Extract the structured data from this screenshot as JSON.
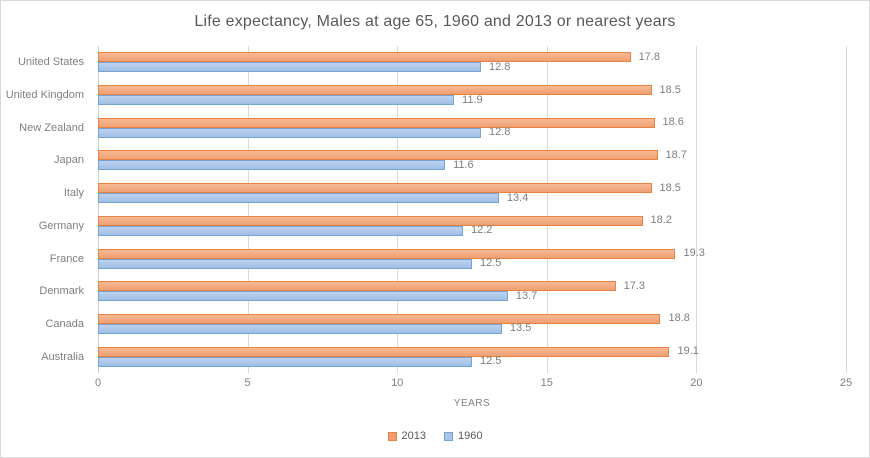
{
  "chart_data": {
    "type": "bar",
    "orientation": "horizontal",
    "title": "Life expectancy, Males at age 65, 1960 and 2013 or nearest years",
    "categories": [
      "United States",
      "United Kingdom",
      "New Zealand",
      "Japan",
      "Italy",
      "Germany",
      "France",
      "Denmark",
      "Canada",
      "Australia"
    ],
    "series": [
      {
        "name": "2013",
        "values": [
          17.8,
          18.5,
          18.6,
          18.7,
          18.5,
          18.2,
          19.3,
          17.3,
          18.8,
          19.1
        ],
        "fill_top": "#F7BB96",
        "fill_bottom": "#EF9E72",
        "border": "#E8833F",
        "legend_fill": "#F09D70"
      },
      {
        "name": "1960",
        "values": [
          12.8,
          11.9,
          12.8,
          11.6,
          13.4,
          12.2,
          12.5,
          13.7,
          13.5,
          12.5
        ],
        "fill_top": "#BED2EE",
        "fill_bottom": "#9FBFE5",
        "border": "#75A3D6",
        "legend_fill": "#A9C6E8"
      }
    ],
    "xlabel": "YEARS",
    "xlim": [
      0,
      25
    ],
    "xticks": [
      0,
      5,
      10,
      15,
      20,
      25
    ],
    "grid": "vertical-only",
    "legend_position": "bottom-center",
    "value_label_decimals": 1,
    "colors": {
      "gridline": "#D9D9D9",
      "frame": "#D9D9D9",
      "title_text": "#595959",
      "label_text": "#7F7F7F",
      "legend_text": "#595959",
      "background": "#FFFFFF"
    }
  }
}
